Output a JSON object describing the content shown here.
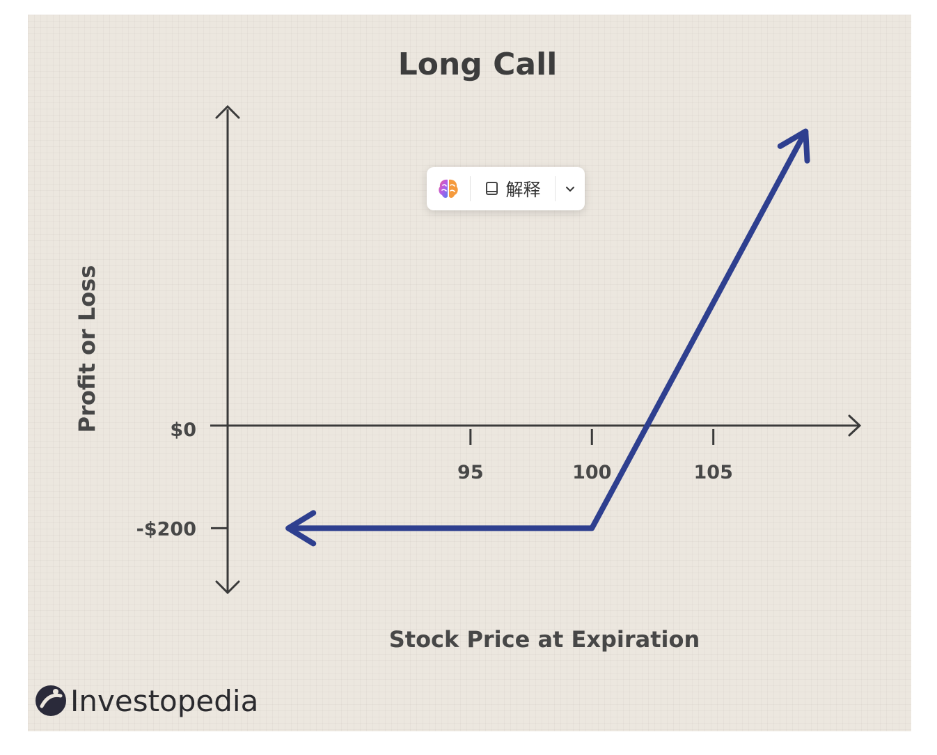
{
  "chart_data": {
    "type": "line",
    "title": "Long Call",
    "xlabel": "Stock Price at Expiration",
    "ylabel": "Profit or Loss",
    "x_ticks": [
      95,
      100,
      105
    ],
    "y_ticks": [
      {
        "value": 0,
        "label": "$0"
      },
      {
        "value": -200,
        "label": "-$200"
      }
    ],
    "xlim": [
      85,
      111
    ],
    "ylim": [
      -330,
      650
    ],
    "series": [
      {
        "x": [
          87.5,
          100,
          102.2,
          108.8
        ],
        "y": [
          -200,
          -200,
          0,
          600
        ],
        "color": "#2e3f8f"
      }
    ],
    "arrowheads": [
      "start",
      "end"
    ],
    "grid": false,
    "legend": "none"
  },
  "brand": {
    "name": "Investopedia"
  },
  "toolbar": {
    "explain_label": "解释",
    "ai_icon": "brain-icon",
    "explain_icon": "book-icon",
    "more_icon": "chevron-down-icon"
  },
  "colors": {
    "background": "#ece7df",
    "axis": "#3a3a3a",
    "line": "#2e3f8f",
    "text": "#474747"
  }
}
